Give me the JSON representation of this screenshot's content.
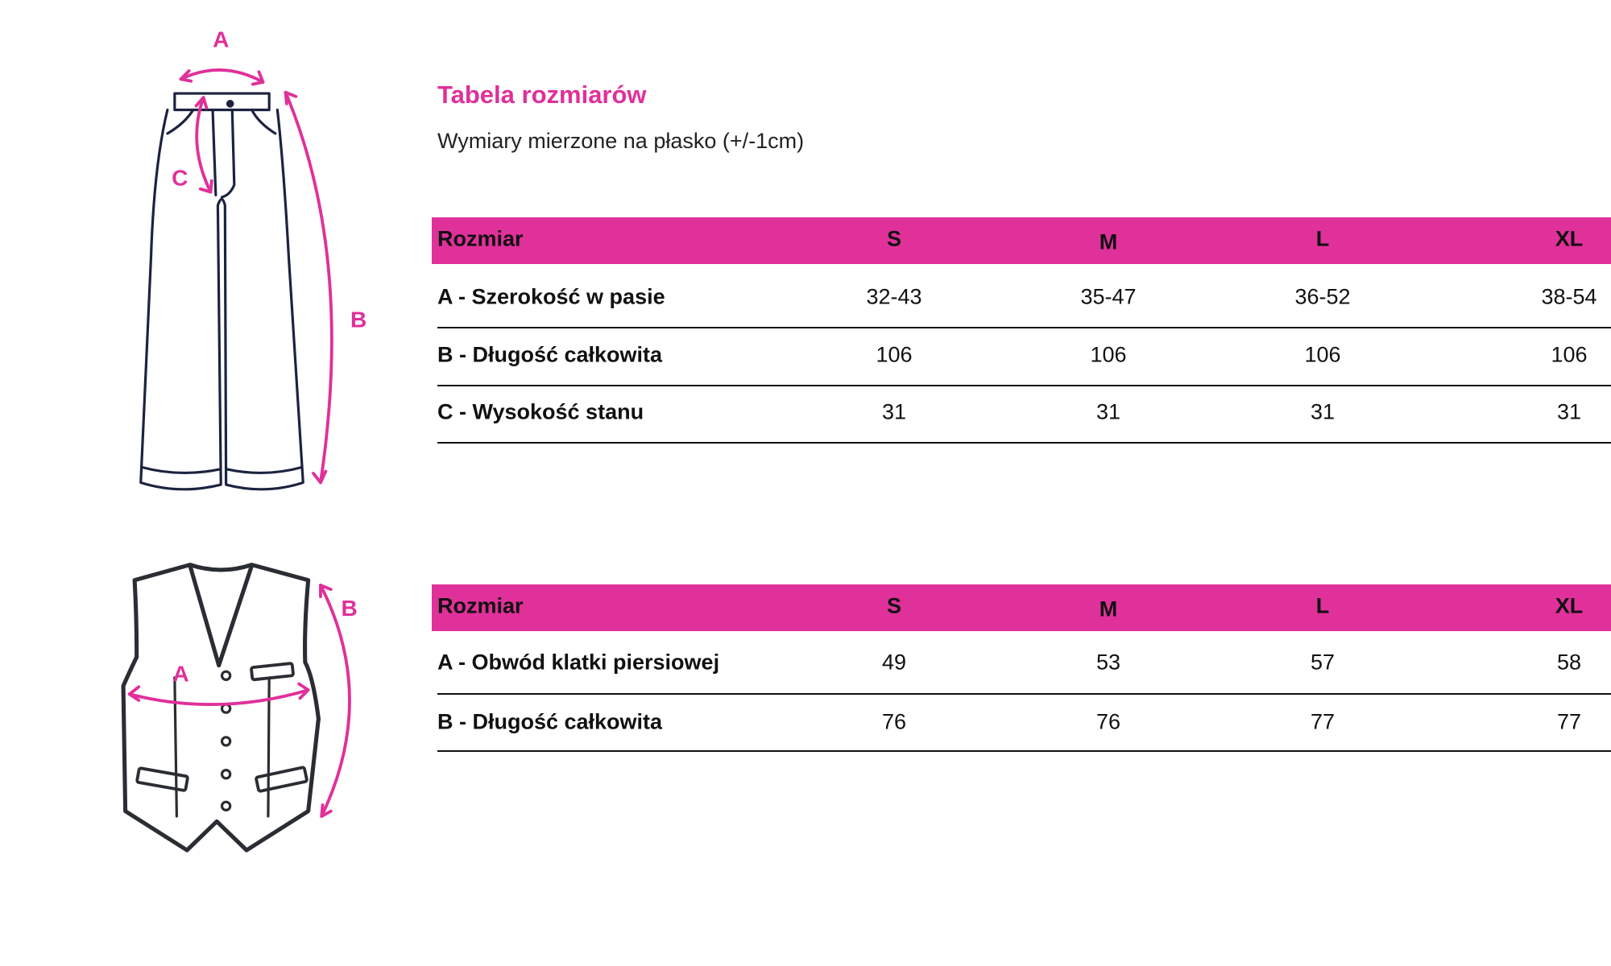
{
  "header": {
    "title": "Tabela rozmiarów",
    "subtitle": "Wymiary mierzone na płasko (+/-1cm)"
  },
  "figures": {
    "trousers": {
      "labels": [
        "A",
        "C",
        "B"
      ]
    },
    "vest": {
      "labels": [
        "A",
        "B"
      ]
    }
  },
  "tables": [
    {
      "columns": [
        "Rozmiar",
        "S",
        "M",
        "L",
        "XL"
      ],
      "rows": [
        [
          "A - Szerokość w pasie",
          "32-43",
          "35-47",
          "36-52",
          "38-54"
        ],
        [
          "B - Długość całkowita",
          "106",
          "106",
          "106",
          "106"
        ],
        [
          "C - Wysokość stanu",
          "31",
          "31",
          "31",
          "31"
        ]
      ]
    },
    {
      "columns": [
        "Rozmiar",
        "S",
        "M",
        "L",
        "XL"
      ],
      "rows": [
        [
          "A - Obwód klatki piersiowej",
          "49",
          "53",
          "57",
          "58"
        ],
        [
          "B - Długość całkowita",
          "76",
          "76",
          "77",
          "77"
        ]
      ]
    }
  ]
}
